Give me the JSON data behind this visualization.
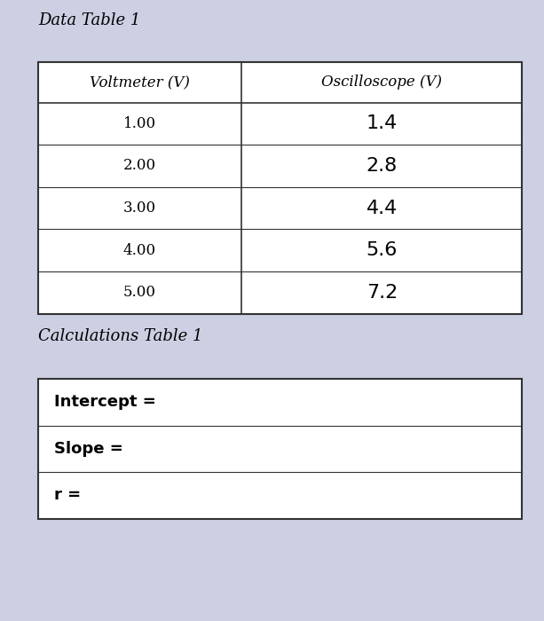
{
  "title1": "Data Table 1",
  "title2": "Calculations Table 1",
  "data_headers": [
    "Voltmeter (V)",
    "Oscilloscope (V)"
  ],
  "data_rows": [
    [
      "1.00",
      "1.4"
    ],
    [
      "2.00",
      "2.8"
    ],
    [
      "3.00",
      "4.4"
    ],
    [
      "4.00",
      "5.6"
    ],
    [
      "5.00",
      "7.2"
    ]
  ],
  "calc_rows": [
    [
      "Intercept =",
      ""
    ],
    [
      "Slope =",
      ""
    ],
    [
      "r =",
      ""
    ]
  ],
  "bg_color": "#cdd0e3",
  "border_color": "#333333",
  "title_fontsize": 13,
  "header_fontsize": 12,
  "data_fontsize": 12,
  "handwritten_fontsize": 16,
  "calc_label_fontsize": 13
}
